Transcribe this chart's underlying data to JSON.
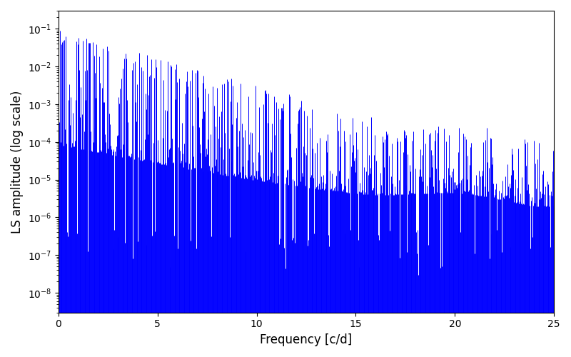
{
  "xlabel": "Frequency [c/d]",
  "ylabel": "LS amplitude (log scale)",
  "xlim": [
    0,
    25
  ],
  "ylim": [
    3e-09,
    0.3
  ],
  "line_color": "#0000ff",
  "line_width": 0.7,
  "figsize": [
    8.0,
    5.0
  ],
  "dpi": 100,
  "freq_max": 25.0,
  "n_lines": 800,
  "seed": 12345,
  "background_color": "#ffffff",
  "yticks": [
    1e-08,
    1e-07,
    1e-06,
    1e-05,
    0.0001,
    0.001,
    0.01,
    0.1
  ]
}
